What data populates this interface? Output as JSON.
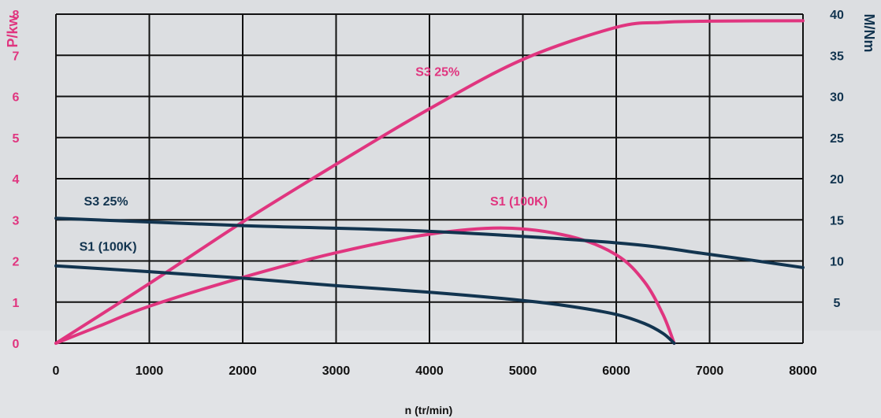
{
  "chart_data": {
    "type": "line",
    "xlabel": "n (tr/min)",
    "ylabel_left": "P/kw",
    "ylabel_right": "M/Nm",
    "xlim": [
      0,
      8000
    ],
    "ylim_left": [
      0,
      8
    ],
    "ylim_right": [
      0,
      40
    ],
    "x_ticks": [
      "0",
      "1000",
      "2000",
      "3000",
      "4000",
      "5000",
      "6000",
      "7000",
      "8000"
    ],
    "y_left_ticks": [
      "0",
      "1",
      "2",
      "3",
      "4",
      "5",
      "6",
      "7",
      "8"
    ],
    "y_right_ticks": [
      "5",
      "10",
      "15",
      "20",
      "25",
      "30",
      "35",
      "40"
    ],
    "grid": true,
    "colors": {
      "power": "#e0357f",
      "torque": "#12344f",
      "grid": "#111111"
    },
    "series": [
      {
        "name": "S3 25%",
        "axis": "left",
        "color": "#e0357f",
        "x": [
          0,
          1000,
          2000,
          3000,
          4000,
          5000,
          6000,
          6500,
          7000,
          8000
        ],
        "y": [
          0,
          1.45,
          2.95,
          4.35,
          5.7,
          6.9,
          7.68,
          7.8,
          7.83,
          7.84
        ]
      },
      {
        "name": "S1 (100K)",
        "axis": "left",
        "color": "#e0357f",
        "x": [
          0,
          500,
          1000,
          2000,
          3000,
          4000,
          4800,
          5500,
          6000,
          6300,
          6500,
          6620
        ],
        "y": [
          0,
          0.45,
          0.9,
          1.6,
          2.2,
          2.65,
          2.8,
          2.6,
          2.15,
          1.5,
          0.7,
          0
        ]
      },
      {
        "name": "S3 25%",
        "axis": "right",
        "color": "#12344f",
        "x": [
          0,
          2000,
          4000,
          6000,
          7000,
          8000
        ],
        "y": [
          15.2,
          14.3,
          13.6,
          12.2,
          10.8,
          9.2
        ]
      },
      {
        "name": "S1 (100K)",
        "axis": "right",
        "color": "#12344f",
        "x": [
          0,
          1000,
          2000,
          3000,
          4000,
          5000,
          5500,
          6000,
          6300,
          6500,
          6620
        ],
        "y": [
          9.4,
          8.7,
          7.9,
          7.0,
          6.2,
          5.2,
          4.5,
          3.5,
          2.4,
          1.2,
          0
        ]
      }
    ],
    "annotations": [
      {
        "text": "S3 25%",
        "color": "#e0357f",
        "x": 3850,
        "y": 6.5
      },
      {
        "text": "S1 (100K)",
        "color": "#e0357f",
        "x": 4650,
        "y": 3.35
      },
      {
        "text": "S3 25%",
        "color": "#12344f",
        "x": 300,
        "y": 3.35
      },
      {
        "text": "S1 (100K)",
        "color": "#12344f",
        "x": 250,
        "y": 2.25
      }
    ]
  }
}
